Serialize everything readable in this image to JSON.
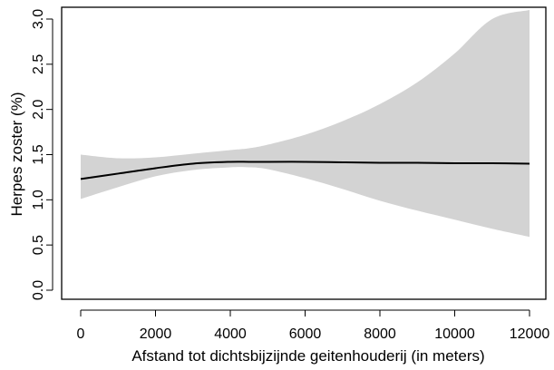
{
  "chart_data": {
    "type": "line",
    "title": "",
    "xlabel": "Afstand tot dichtsbijzijnde geitenhouderij (in meters)",
    "ylabel": "Herpes zoster (%)",
    "xlim": [
      0,
      12000
    ],
    "ylim": [
      0,
      3.0
    ],
    "xticks": [
      0,
      2000,
      4000,
      6000,
      8000,
      10000,
      12000
    ],
    "xtick_labels": [
      "0",
      "2000",
      "4000",
      "6000",
      "8000",
      "10000",
      "12000"
    ],
    "yticks": [
      0,
      0.5,
      1.0,
      1.5,
      2.0,
      2.5,
      3.0
    ],
    "ytick_labels": [
      "0.0",
      "0.5",
      "1.0",
      "1.5",
      "2.0",
      "2.5",
      "3.0"
    ],
    "grid": false,
    "legend": "none",
    "colors": {
      "line": "#000000",
      "band": "#d3d3d3"
    },
    "series": [
      {
        "x": [
          0,
          1000,
          2000,
          3000,
          4000,
          4500,
          5000,
          6000,
          7000,
          8000,
          9000,
          10000,
          11000,
          12000
        ],
        "values": [
          1.23,
          1.29,
          1.35,
          1.4,
          1.42,
          1.42,
          1.42,
          1.42,
          1.415,
          1.41,
          1.41,
          1.405,
          1.405,
          1.4
        ],
        "lower": [
          1.01,
          1.14,
          1.26,
          1.33,
          1.36,
          1.36,
          1.34,
          1.24,
          1.12,
          0.99,
          0.88,
          0.78,
          0.68,
          0.59
        ],
        "upper": [
          1.5,
          1.46,
          1.47,
          1.51,
          1.55,
          1.57,
          1.61,
          1.72,
          1.87,
          2.06,
          2.3,
          2.62,
          3.0,
          3.1
        ]
      }
    ]
  }
}
